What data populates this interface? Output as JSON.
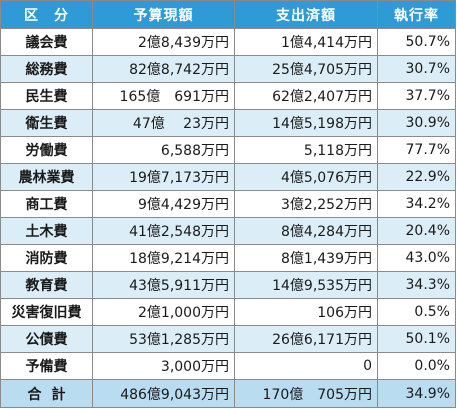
{
  "table": {
    "headers": {
      "category": "区　分",
      "budget": "予算現額",
      "spent": "支出済額",
      "rate": "執行率"
    },
    "rows": [
      {
        "category": "議会費",
        "budget": "2億8,439万円",
        "spent": "1億4,414万円",
        "rate": "50.7%"
      },
      {
        "category": "総務費",
        "budget": "82億8,742万円",
        "spent": "25億4,705万円",
        "rate": "30.7%"
      },
      {
        "category": "民生費",
        "budget": "165億　691万円",
        "spent": "62億2,407万円",
        "rate": "37.7%"
      },
      {
        "category": "衛生費",
        "budget": "47億　 23万円",
        "spent": "14億5,198万円",
        "rate": "30.9%"
      },
      {
        "category": "労働費",
        "budget": "6,588万円",
        "spent": "5,118万円",
        "rate": "77.7%"
      },
      {
        "category": "農林業費",
        "budget": "19億7,173万円",
        "spent": "4億5,076万円",
        "rate": "22.9%"
      },
      {
        "category": "商工費",
        "budget": "9億4,429万円",
        "spent": "3億2,252万円",
        "rate": "34.2%"
      },
      {
        "category": "土木費",
        "budget": "41億2,548万円",
        "spent": "8億4,284万円",
        "rate": "20.4%"
      },
      {
        "category": "消防費",
        "budget": "18億9,214万円",
        "spent": "8億1,439万円",
        "rate": "43.0%"
      },
      {
        "category": "教育費",
        "budget": "43億5,911万円",
        "spent": "14億9,535万円",
        "rate": "34.3%"
      },
      {
        "category": "災害復旧費",
        "budget": "2億1,000万円",
        "spent": "106万円",
        "rate": "0.5%"
      },
      {
        "category": "公債費",
        "budget": "53億1,285万円",
        "spent": "26億6,171万円",
        "rate": "50.1%"
      },
      {
        "category": "予備費",
        "budget": "3,000万円",
        "spent": "0",
        "rate": "0.0%"
      }
    ],
    "total": {
      "category": "合計",
      "budget": "486億9,043万円",
      "spent": "170億　705万円",
      "rate": "34.9%"
    }
  }
}
